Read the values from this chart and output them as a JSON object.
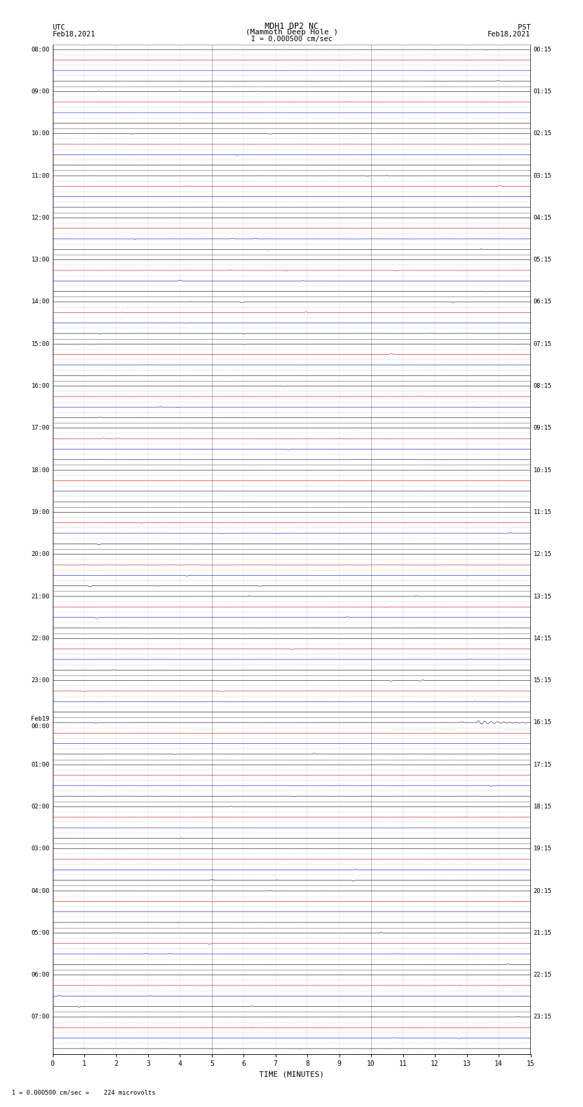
{
  "title_line1": "MDH1 DP2 NC",
  "title_line2": "(Mammoth Deep Hole )",
  "scale_text": "I = 0.000500 cm/sec",
  "footer_text": "1 = 0.000500 cm/sec =    224 microvolts",
  "utc_label": "UTC",
  "utc_date": "Feb18,2021",
  "pst_label": "PST",
  "pst_date": "Feb18,2021",
  "xlabel": "TIME (MINUTES)",
  "bg_color": "#ffffff",
  "grid_color_major": "#999999",
  "grid_color_minor": "#cccccc",
  "num_hours": 24,
  "rows_per_hour": 4,
  "minutes_per_row": 15,
  "noise_amplitude": 0.006,
  "quake_row_index": 64,
  "quake_minute": 13.3,
  "quake_amplitude": 0.18,
  "utc_hour_labels": [
    "08:00",
    "09:00",
    "10:00",
    "11:00",
    "12:00",
    "13:00",
    "14:00",
    "15:00",
    "16:00",
    "17:00",
    "18:00",
    "19:00",
    "20:00",
    "21:00",
    "22:00",
    "23:00",
    "Feb19\n00:00",
    "01:00",
    "02:00",
    "03:00",
    "04:00",
    "05:00",
    "06:00",
    "07:00"
  ],
  "pst_hour_labels": [
    "00:15",
    "01:15",
    "02:15",
    "03:15",
    "04:15",
    "05:15",
    "06:15",
    "07:15",
    "08:15",
    "09:15",
    "10:15",
    "11:15",
    "12:15",
    "13:15",
    "14:15",
    "15:15",
    "16:15",
    "17:15",
    "18:15",
    "19:15",
    "20:15",
    "21:15",
    "22:15",
    "23:15"
  ],
  "row_colors": [
    "#000000",
    "#cc0000",
    "#0000cc",
    "#000000"
  ],
  "trace_linewidth": 0.4
}
